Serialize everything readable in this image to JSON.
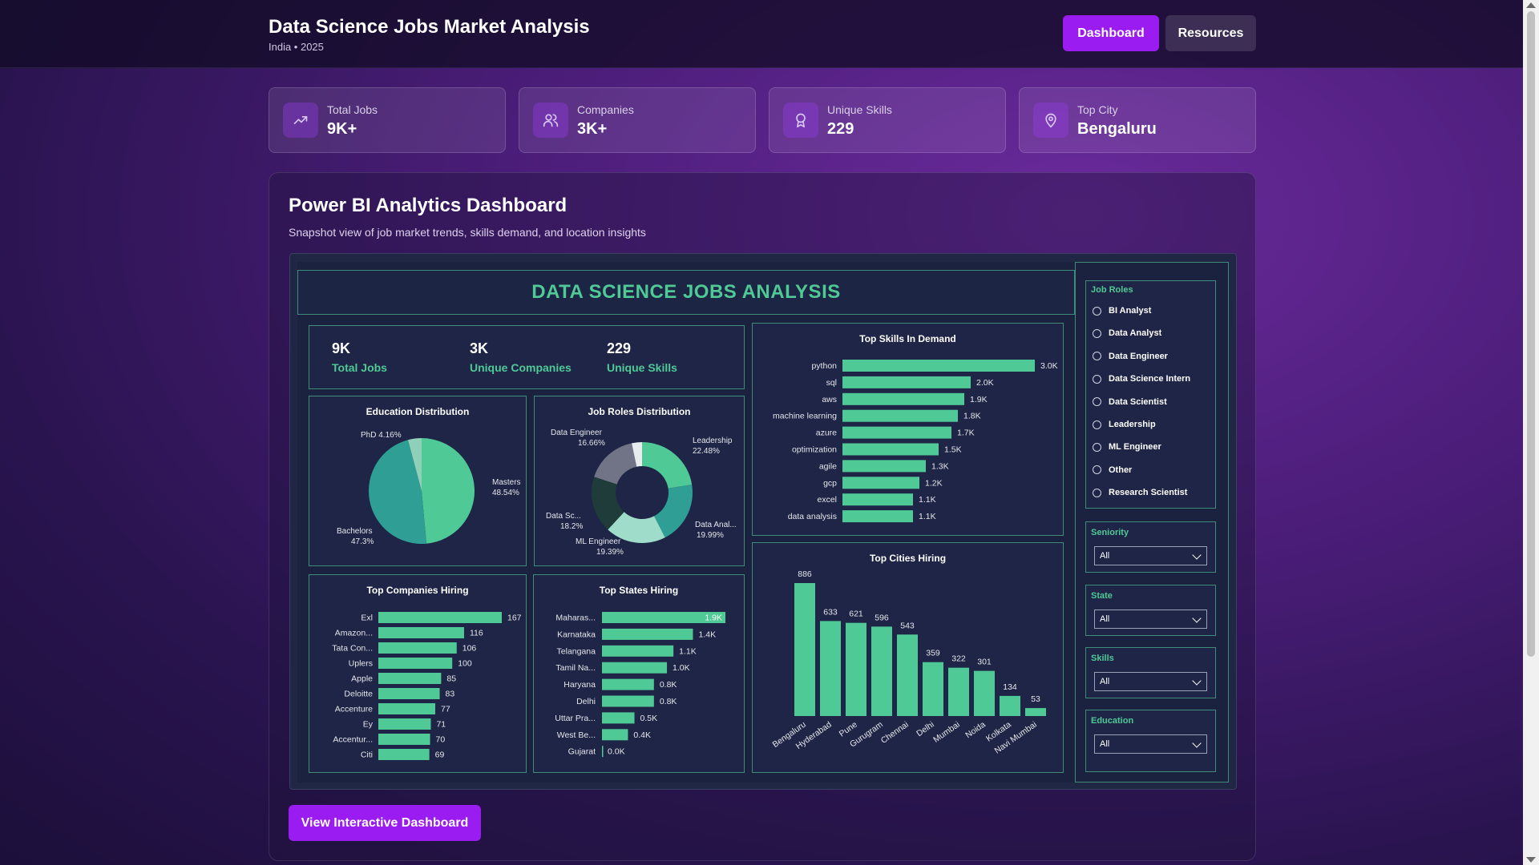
{
  "header": {
    "title": "Data Science Jobs Market Analysis",
    "subtitle": "India • 2025",
    "nav": {
      "dashboard": "Dashboard",
      "resources": "Resources"
    }
  },
  "stats": [
    {
      "label": "Total Jobs",
      "value": "9K+",
      "icon": "trending-up-icon"
    },
    {
      "label": "Companies",
      "value": "3K+",
      "icon": "users-icon"
    },
    {
      "label": "Unique Skills",
      "value": "229",
      "icon": "award-icon"
    },
    {
      "label": "Top City",
      "value": "Bengaluru",
      "icon": "map-pin-icon"
    }
  ],
  "panel": {
    "title": "Power BI Analytics Dashboard",
    "description": "Snapshot view of job market trends, skills demand, and location insights",
    "cta": "View Interactive Dashboard"
  },
  "report": {
    "heading": "DATA SCIENCE JOBS ANALYSIS",
    "kpis": [
      {
        "value": "9K",
        "label": "Total Jobs"
      },
      {
        "value": "3K",
        "label": "Unique Companies"
      },
      {
        "value": "229",
        "label": "Unique Skills"
      }
    ],
    "titles": {
      "education": "Education Distribution",
      "roles": "Job Roles Distribution",
      "skills": "Top Skills In Demand",
      "companies": "Top Companies Hiring",
      "states": "Top States Hiring",
      "cities": "Top Cities Hiring"
    },
    "slicers": {
      "job_roles_title": "Job Roles",
      "job_roles": [
        "BI Analyst",
        "Data Analyst",
        "Data Engineer",
        "Data Science Intern",
        "Data Scientist",
        "Leadership",
        "ML Engineer",
        "Other",
        "Research Scientist"
      ],
      "dropdowns": [
        {
          "title": "Seniority",
          "value": "All"
        },
        {
          "title": "State",
          "value": "All"
        },
        {
          "title": "Skills",
          "value": "All"
        },
        {
          "title": "Education",
          "value": "All"
        }
      ]
    }
  },
  "colors": {
    "accent": "#9a1cf0",
    "green": "#4fc995",
    "teal": "#2f9e94"
  },
  "chart_data": [
    {
      "type": "pie",
      "title": "Education Distribution",
      "slices": [
        {
          "label": "Masters",
          "value": 48.54,
          "display": "48.54%"
        },
        {
          "label": "Bachelors",
          "value": 47.3,
          "display": "47.3%"
        },
        {
          "label": "PhD",
          "value": 4.16,
          "display": "4.16%"
        }
      ]
    },
    {
      "type": "pie",
      "title": "Job Roles Distribution",
      "donut": true,
      "slices": [
        {
          "label": "Leadership",
          "value": 22.48,
          "display": "22.48%"
        },
        {
          "label": "Data Anal...",
          "value": 19.99,
          "display": "19.99%"
        },
        {
          "label": "ML Engineer",
          "value": 19.39,
          "display": "19.39%"
        },
        {
          "label": "Data Sc...",
          "value": 18.2,
          "display": "18.2%"
        },
        {
          "label": "Data Engineer",
          "value": 16.66,
          "display": "16.66%"
        },
        {
          "label": "",
          "value": 3.28,
          "display": ""
        }
      ]
    },
    {
      "type": "bar",
      "orientation": "horizontal",
      "title": "Top Skills In Demand",
      "categories": [
        "python",
        "sql",
        "aws",
        "machine learning",
        "azure",
        "optimization",
        "agile",
        "gcp",
        "excel",
        "data analysis"
      ],
      "values": [
        3000,
        2000,
        1900,
        1800,
        1700,
        1500,
        1300,
        1200,
        1100,
        1100
      ],
      "labels": [
        "3.0K",
        "2.0K",
        "1.9K",
        "1.8K",
        "1.7K",
        "1.5K",
        "1.3K",
        "1.2K",
        "1.1K",
        "1.1K"
      ]
    },
    {
      "type": "bar",
      "orientation": "horizontal",
      "title": "Top Companies Hiring",
      "categories": [
        "Exl",
        "Amazon...",
        "Tata Con...",
        "Uplers",
        "Apple",
        "Deloitte",
        "Accenture",
        "Ey",
        "Accentur...",
        "Citi"
      ],
      "values": [
        167,
        116,
        106,
        100,
        85,
        83,
        77,
        71,
        70,
        69
      ],
      "labels": [
        "167",
        "116",
        "106",
        "100",
        "85",
        "83",
        "77",
        "71",
        "70",
        "69"
      ]
    },
    {
      "type": "bar",
      "orientation": "horizontal",
      "title": "Top States Hiring",
      "categories": [
        "Maharas...",
        "Karnataka",
        "Telangana",
        "Tamil Na...",
        "Haryana",
        "Delhi",
        "Uttar Pra...",
        "West Be...",
        "Gujarat"
      ],
      "values": [
        1900,
        1400,
        1100,
        1000,
        800,
        800,
        500,
        400,
        0
      ],
      "labels": [
        "1.9K",
        "1.4K",
        "1.1K",
        "1.0K",
        "0.8K",
        "0.8K",
        "0.5K",
        "0.4K",
        "0.0K"
      ]
    },
    {
      "type": "bar",
      "orientation": "vertical",
      "title": "Top Cities Hiring",
      "categories": [
        "Bengaluru",
        "Hyderabad",
        "Pune",
        "Gurugram",
        "Chennai",
        "Delhi",
        "Mumbai",
        "Noida",
        "Kolkata",
        "Navi Mumbai"
      ],
      "values": [
        886,
        633,
        621,
        596,
        543,
        359,
        322,
        301,
        134,
        53
      ]
    }
  ]
}
